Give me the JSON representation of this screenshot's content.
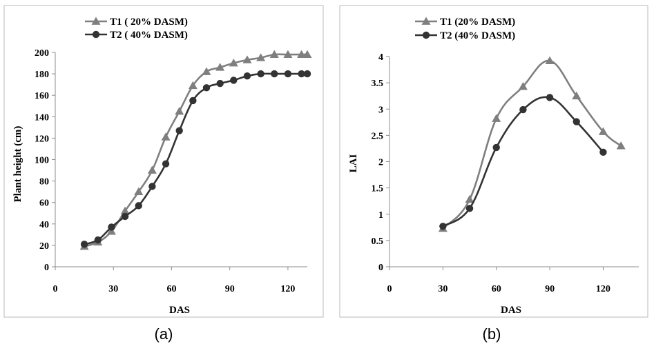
{
  "colors": {
    "t1": "#7f7f7f",
    "t2": "#333333",
    "frame": "#b8b8b8",
    "axis": "#8c8c8c"
  },
  "chart_data": [
    {
      "type": "line",
      "panel_label": "(a)",
      "xlabel": "DAS",
      "ylabel": "Plant height (cm)",
      "xlim": [
        0,
        130
      ],
      "ylim": [
        0,
        200
      ],
      "x_ticks": [
        "0",
        "30",
        "60",
        "90",
        "120"
      ],
      "y_ticks": [
        "0",
        "20",
        "40",
        "60",
        "80",
        "100",
        "120",
        "140",
        "160",
        "180",
        "200"
      ],
      "legend_position": "top-center",
      "series": [
        {
          "name": "T1 ( 20% DASM)",
          "marker": "triangle",
          "x": [
            15,
            22,
            29,
            36,
            43,
            50,
            57,
            64,
            71,
            78,
            85,
            92,
            99,
            106,
            113,
            120,
            127,
            130
          ],
          "y": [
            19,
            23,
            33,
            52,
            70,
            90,
            121,
            145,
            169,
            182,
            186,
            190,
            193,
            195,
            198,
            198,
            198,
            198
          ]
        },
        {
          "name": "T2 ( 40% DASM)",
          "marker": "circle",
          "x": [
            15,
            22,
            29,
            36,
            43,
            50,
            57,
            64,
            71,
            78,
            85,
            92,
            99,
            106,
            113,
            120,
            127,
            130
          ],
          "y": [
            21,
            25,
            37,
            47,
            57,
            75,
            96,
            127,
            155,
            167,
            171,
            174,
            178,
            180,
            180,
            180,
            180,
            180
          ]
        }
      ]
    },
    {
      "type": "line",
      "panel_label": "(b)",
      "xlabel": "DAS",
      "ylabel": "LAI",
      "xlim": [
        0,
        140
      ],
      "ylim": [
        0,
        4
      ],
      "x_ticks": [
        "0",
        "30",
        "60",
        "90",
        "120"
      ],
      "y_ticks": [
        "0",
        "0.5",
        "1",
        "1.5",
        "2",
        "2.5",
        "3",
        "3.5",
        "4"
      ],
      "legend_position": "top-center",
      "series": [
        {
          "name": "T1 (20% DASM)",
          "marker": "triangle",
          "x": [
            30,
            45,
            60,
            75,
            90,
            105,
            120,
            130
          ],
          "y": [
            0.73,
            1.28,
            2.82,
            3.43,
            3.92,
            3.25,
            2.57,
            2.3
          ]
        },
        {
          "name": "T2 (40% DASM)",
          "marker": "circle",
          "x": [
            30,
            45,
            60,
            75,
            90,
            105,
            120
          ],
          "y": [
            0.77,
            1.11,
            2.27,
            2.99,
            3.22,
            2.76,
            2.18
          ]
        }
      ]
    }
  ]
}
